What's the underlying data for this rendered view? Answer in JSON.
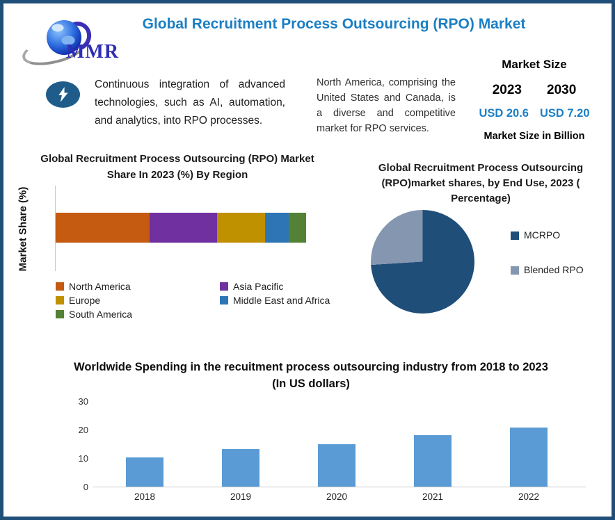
{
  "header": {
    "title": "Global Recruitment Process Outsourcing (RPO) Market",
    "logo_text": "MMR"
  },
  "icons": {
    "logo": "globe-icon",
    "highlight": "lightning-icon"
  },
  "colors": {
    "accent_blue": "#1b7fc4",
    "border_navy": "#1f4e79",
    "bolt_badge": "#1f5c8a"
  },
  "highlights": {
    "tech_note": "Continuous integration of advanced technologies, such as AI, automation, and analytics, into RPO processes.",
    "na_note": "North America, comprising the United States and Canada, is a diverse and competitive market for RPO services."
  },
  "market_size": {
    "title": "Market Size",
    "year_start": "2023",
    "year_end": "2030",
    "value_start": "USD 20.6",
    "value_end": "USD 7.20",
    "unit_note": "Market Size in Billion"
  },
  "chart_data": [
    {
      "type": "bar",
      "orientation": "horizontal",
      "stacked": true,
      "title": "Global Recruitment Process Outsourcing (RPO) Market Share In 2023 (%) By Region",
      "ylabel": "Market Share (%)",
      "xlim": [
        0,
        100
      ],
      "legend_position": "bottom",
      "series": [
        {
          "name": "North America",
          "value": 37.5,
          "color": "#C55A11"
        },
        {
          "name": "Asia Pacific",
          "value": 27.0,
          "color": "#7030A0"
        },
        {
          "name": "Europe",
          "value": 19.0,
          "color": "#BF9000"
        },
        {
          "name": "Middle East and Africa",
          "value": 9.5,
          "color": "#2E75B6"
        },
        {
          "name": "South America",
          "value": 7.0,
          "color": "#538135"
        }
      ]
    },
    {
      "type": "pie",
      "title": "Global Recruitment Process Outsourcing (RPO)market shares, by End Use, 2023 ( Percentage)",
      "legend_position": "right",
      "slices": [
        {
          "name": "MCRPO",
          "value": 74,
          "color": "#1F4E79"
        },
        {
          "name": "Blended RPO",
          "value": 26,
          "color": "#8496B0"
        }
      ]
    },
    {
      "type": "bar",
      "title": "Worldwide Spending in the recuitment process outsourcing industry from 2018 to 2023 (In US dollars)",
      "categories": [
        "2018",
        "2019",
        "2020",
        "2021",
        "2022"
      ],
      "values": [
        10.3,
        13.2,
        15,
        18,
        20.7
      ],
      "bar_color": "#5B9BD5",
      "yticks": [
        0,
        10,
        20,
        30
      ],
      "ylim": [
        0,
        30
      ],
      "grid": false
    }
  ]
}
